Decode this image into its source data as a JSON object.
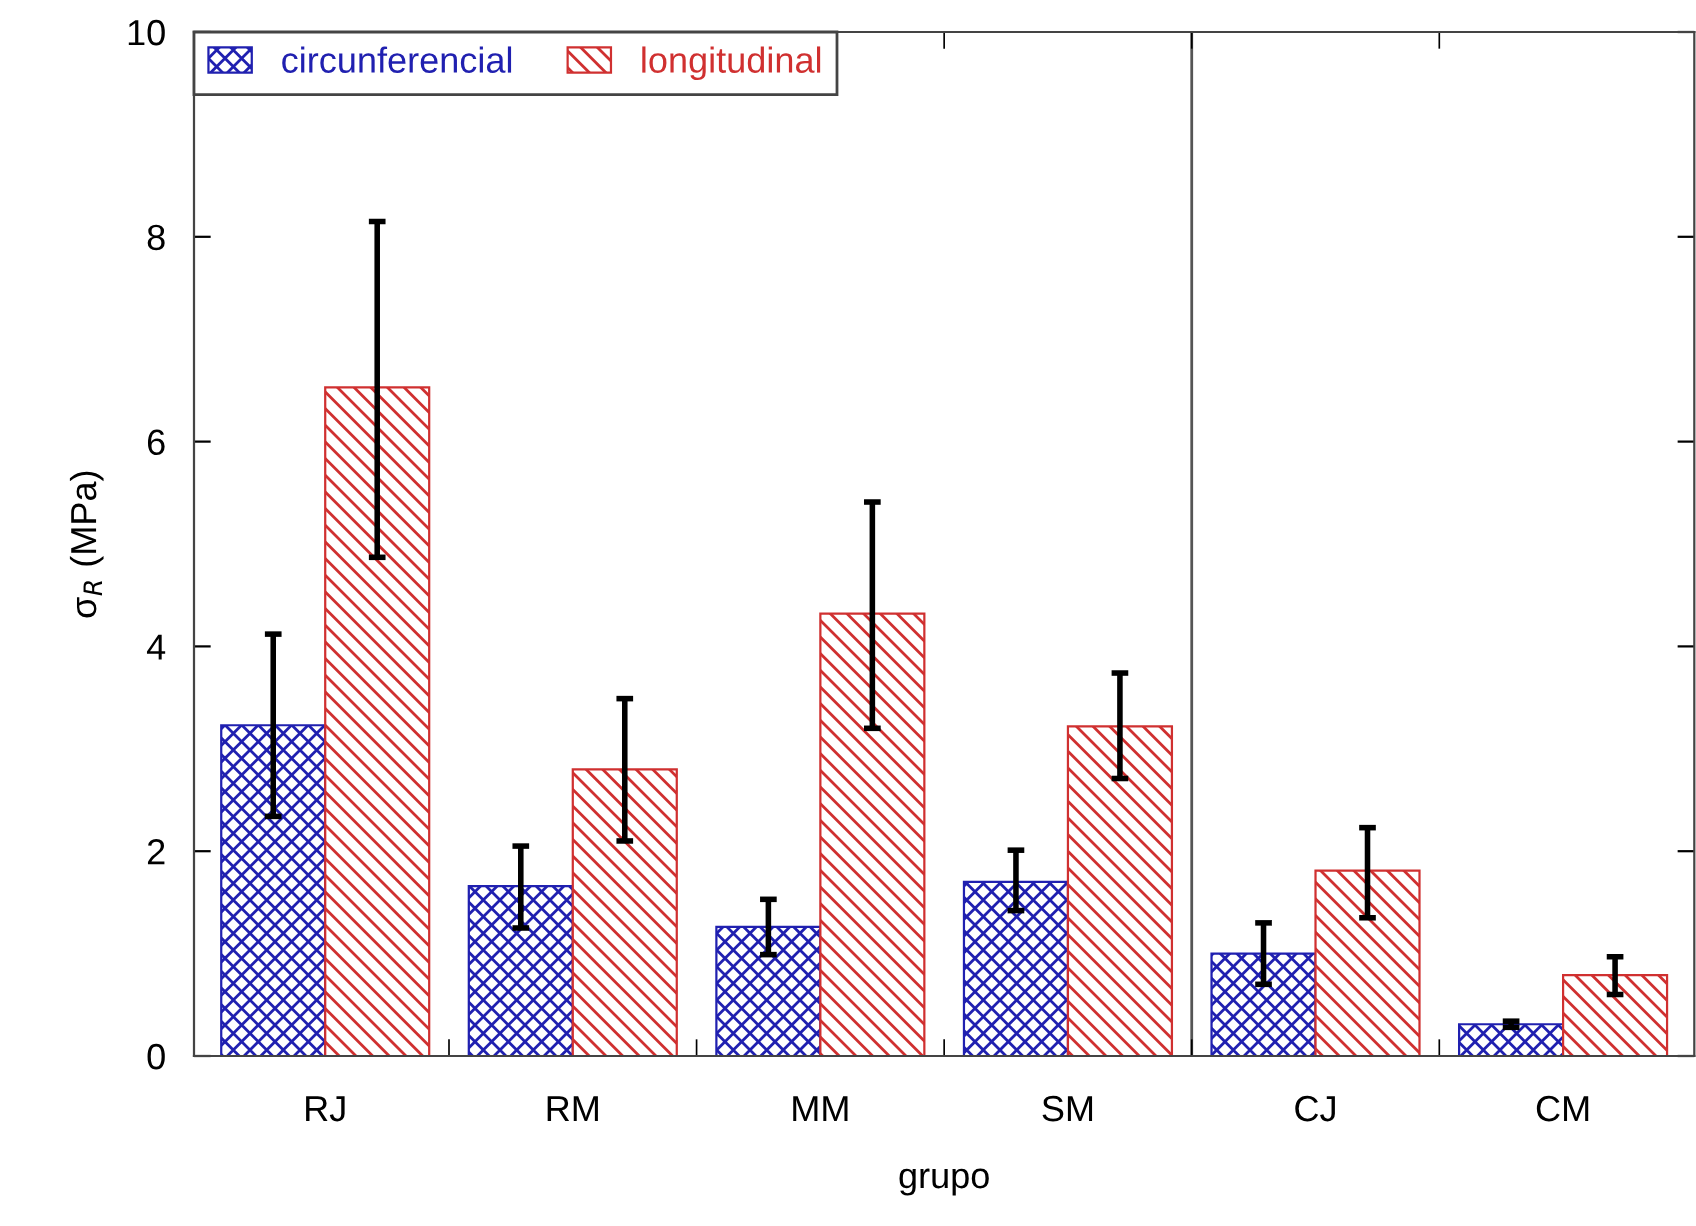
{
  "chart_data": {
    "type": "bar",
    "xlabel": "grupo",
    "ylabel": "σ$_{R}$ (MPa)",
    "categories": [
      "RJ",
      "RM",
      "MM",
      "SM",
      "CJ",
      "CM"
    ],
    "series": [
      {
        "name": "circunferencial",
        "color": "#2020b0",
        "values": [
          3.23,
          1.66,
          1.26,
          1.7,
          1.0,
          0.31
        ],
        "errors": [
          [
            2.34,
            4.12
          ],
          [
            1.25,
            2.05
          ],
          [
            0.99,
            1.53
          ],
          [
            1.42,
            2.01
          ],
          [
            0.7,
            1.3
          ],
          [
            0.28,
            0.34
          ]
        ]
      },
      {
        "name": "longitudinal",
        "color": "#d03030",
        "values": [
          6.53,
          2.8,
          4.32,
          3.22,
          1.81,
          0.79
        ],
        "errors": [
          [
            4.87,
            8.15
          ],
          [
            2.1,
            3.49
          ],
          [
            3.2,
            5.41
          ],
          [
            2.71,
            3.74
          ],
          [
            1.35,
            2.23
          ],
          [
            0.6,
            0.97
          ]
        ]
      }
    ],
    "ylim": [
      0,
      10
    ],
    "yticks": [
      0,
      2,
      4,
      6,
      8,
      10
    ],
    "grid": false,
    "legend": "top left"
  }
}
